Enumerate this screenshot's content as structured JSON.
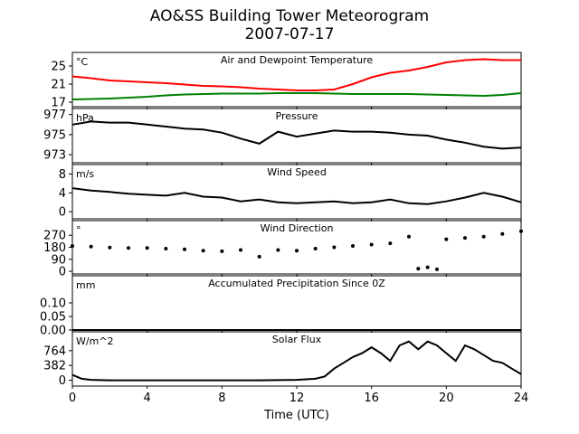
{
  "title": "AO&SS Building Tower Meteorogram",
  "date": "2007-07-17",
  "xlabel": "Time (UTC)",
  "chart_data": [
    {
      "type": "line",
      "title": "Air and Dewpoint Temperature",
      "unit": "°C",
      "ylim": [
        16,
        28
      ],
      "yticks": [
        "17",
        "21",
        "25"
      ],
      "xlim": [
        0,
        24
      ],
      "series": [
        {
          "color": "#ff0000",
          "x": [
            0,
            1,
            2,
            3,
            4,
            5,
            6,
            7,
            8,
            9,
            10,
            11,
            12,
            13,
            14,
            15,
            16,
            17,
            18,
            19,
            20,
            21,
            22,
            23,
            24
          ],
          "values": [
            22.7,
            22.3,
            21.8,
            21.6,
            21.4,
            21.2,
            20.9,
            20.6,
            20.5,
            20.3,
            20.0,
            19.8,
            19.6,
            19.6,
            19.8,
            21.0,
            22.5,
            23.5,
            24.0,
            24.8,
            25.8,
            26.3,
            26.5,
            26.3,
            26.3
          ]
        },
        {
          "color": "#008000",
          "x": [
            0,
            1,
            2,
            3,
            4,
            5,
            6,
            7,
            8,
            9,
            10,
            11,
            12,
            13,
            14,
            15,
            16,
            17,
            18,
            19,
            20,
            21,
            22,
            23,
            24
          ],
          "values": [
            17.6,
            17.7,
            17.8,
            18.0,
            18.2,
            18.5,
            18.7,
            18.8,
            18.9,
            18.9,
            18.9,
            19.0,
            19.0,
            19.0,
            18.9,
            18.8,
            18.8,
            18.8,
            18.8,
            18.7,
            18.6,
            18.5,
            18.4,
            18.6,
            19.0
          ]
        }
      ]
    },
    {
      "type": "line",
      "title": "Pressure",
      "unit": "hPa",
      "ylim": [
        972.2,
        977.6
      ],
      "yticks": [
        "973",
        "975",
        "977"
      ],
      "xlim": [
        0,
        24
      ],
      "series": [
        {
          "color": "#000000",
          "x": [
            0,
            1,
            2,
            3,
            4,
            5,
            6,
            7,
            8,
            9,
            10,
            11,
            12,
            13,
            14,
            15,
            16,
            17,
            18,
            19,
            20,
            21,
            22,
            23,
            24
          ],
          "values": [
            976.0,
            976.3,
            976.2,
            976.2,
            976.0,
            975.8,
            975.6,
            975.5,
            975.2,
            974.6,
            974.1,
            975.3,
            974.8,
            975.1,
            975.4,
            975.3,
            975.3,
            975.2,
            975.0,
            974.9,
            974.5,
            974.2,
            973.8,
            973.6,
            973.7
          ]
        }
      ]
    },
    {
      "type": "line",
      "title": "Wind Speed",
      "unit": "m/s",
      "ylim": [
        -1.5,
        10
      ],
      "yticks": [
        "0",
        "4",
        "8"
      ],
      "xlim": [
        0,
        24
      ],
      "series": [
        {
          "color": "#000000",
          "x": [
            0,
            1,
            2,
            3,
            4,
            5,
            6,
            7,
            8,
            9,
            10,
            11,
            12,
            13,
            14,
            15,
            16,
            17,
            18,
            19,
            20,
            21,
            22,
            23,
            24
          ],
          "values": [
            5.0,
            4.5,
            4.2,
            3.8,
            3.6,
            3.4,
            4.0,
            3.2,
            3.0,
            2.2,
            2.6,
            2.0,
            1.8,
            2.0,
            2.2,
            1.8,
            2.0,
            2.6,
            1.8,
            1.6,
            2.2,
            3.0,
            4.0,
            3.2,
            2.0
          ]
        }
      ]
    },
    {
      "type": "scatter",
      "title": "Wind Direction",
      "unit": "°",
      "ylim": [
        -20,
        380
      ],
      "yticks": [
        "0",
        "90",
        "180",
        "270"
      ],
      "xlim": [
        0,
        24
      ],
      "series": [
        {
          "color": "#000000",
          "x": [
            0,
            1,
            2,
            3,
            4,
            5,
            6,
            7,
            8,
            9,
            10,
            11,
            12,
            13,
            14,
            15,
            16,
            17,
            18,
            18.5,
            19,
            19.5,
            20,
            21,
            22,
            23,
            24
          ],
          "values": [
            190,
            185,
            178,
            175,
            175,
            170,
            165,
            155,
            150,
            160,
            110,
            160,
            155,
            170,
            180,
            190,
            200,
            210,
            260,
            20,
            30,
            15,
            240,
            250,
            260,
            280,
            300
          ]
        }
      ]
    },
    {
      "type": "line",
      "title": "Accumulated Precipitation Since 0Z",
      "unit": "mm",
      "ylim": [
        0,
        0.2
      ],
      "yticks": [
        "0.00",
        "0.05",
        "0.10"
      ],
      "xlim": [
        0,
        24
      ],
      "series": [
        {
          "color": "#000000",
          "x": [
            0,
            24
          ],
          "values": [
            0,
            0
          ]
        }
      ]
    },
    {
      "type": "line",
      "title": "Solar Flux",
      "unit": "W/m^2",
      "ylim": [
        -150,
        1250
      ],
      "yticks": [
        "0",
        "382",
        "764"
      ],
      "xlim": [
        0,
        24
      ],
      "series": [
        {
          "color": "#000000",
          "x": [
            0,
            0.5,
            1,
            2,
            4,
            6,
            8,
            10,
            12,
            13,
            13.5,
            14,
            14.5,
            15,
            15.5,
            16,
            16.5,
            17,
            17.5,
            18,
            18.5,
            19,
            19.5,
            20,
            20.5,
            21,
            21.5,
            22,
            22.5,
            23,
            23.5,
            24
          ],
          "values": [
            140,
            40,
            10,
            0,
            0,
            0,
            0,
            0,
            10,
            40,
            100,
            300,
            450,
            600,
            700,
            850,
            700,
            500,
            900,
            1000,
            800,
            1000,
            900,
            700,
            500,
            900,
            800,
            650,
            500,
            450,
            300,
            160
          ]
        }
      ]
    }
  ],
  "xticks": [
    "0",
    "4",
    "8",
    "12",
    "16",
    "20",
    "24"
  ]
}
